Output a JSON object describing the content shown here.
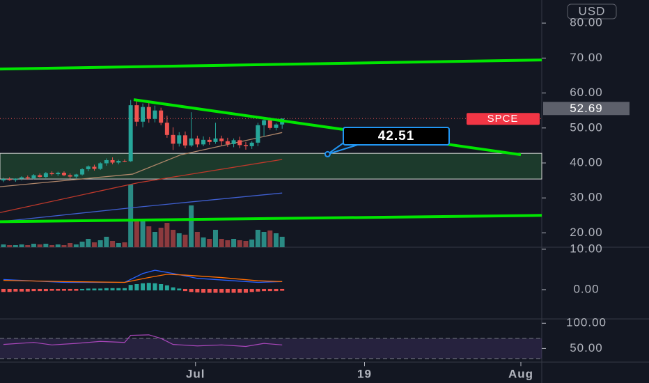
{
  "chart_data": {
    "type": "candlestick",
    "currency": "USD",
    "symbol": "SPCE",
    "xlim": [
      -0.57,
      88.85
    ],
    "xticks": [
      {
        "value": 31.7,
        "label": "Jul"
      },
      {
        "value": 59.6,
        "label": "19"
      },
      {
        "value": 85.4,
        "label": "Aug"
      }
    ],
    "ylim": [
      15.9,
      86.6
    ],
    "yticks": [
      {
        "value": 80,
        "label": "80.00"
      },
      {
        "value": 70,
        "label": "70.00"
      },
      {
        "value": 60,
        "label": "60.00"
      },
      {
        "value": 50,
        "label": "50.00"
      },
      {
        "value": 40,
        "label": "40.00"
      },
      {
        "value": 30,
        "label": "30.00"
      },
      {
        "value": 20,
        "label": "20.00"
      }
    ],
    "up_color": "#26a69a",
    "down_color": "#ef5350",
    "candles": {
      "open": [
        35.0,
        35.4,
        35.1,
        35.5,
        35.9,
        35.6,
        36.5,
        36.0,
        37.1,
        36.8,
        37.2,
        36.5,
        36.1,
        36.7,
        38.2,
        38.9,
        38.3,
        39.9,
        40.8,
        40.1,
        40.6,
        40.5,
        56.5,
        51.8,
        56.0,
        52.6,
        55.0,
        51.5,
        48.0,
        45.5,
        47.9,
        45.0,
        47.0,
        45.3,
        46.6,
        46.0,
        47.0,
        46.2,
        45.4,
        46.5,
        45.1,
        44.8,
        45.8,
        50.8,
        52.2,
        50.0,
        51.0
      ],
      "high": [
        35.8,
        35.9,
        35.6,
        36.2,
        36.4,
        36.8,
        37.0,
        37.4,
        37.6,
        37.5,
        37.6,
        37.0,
        36.9,
        38.5,
        39.3,
        39.5,
        40.2,
        41.3,
        41.6,
        40.9,
        41.0,
        58.0,
        58.2,
        57.0,
        57.2,
        56.4,
        55.8,
        53.5,
        50.2,
        48.8,
        49.0,
        54.5,
        47.8,
        47.6,
        47.4,
        51.5,
        47.8,
        47.2,
        47.0,
        47.5,
        46.0,
        46.2,
        51.5,
        52.6,
        53.0,
        51.4,
        52.2
      ],
      "low": [
        34.5,
        34.9,
        34.6,
        35.0,
        35.2,
        35.3,
        35.8,
        35.7,
        36.4,
        36.3,
        36.2,
        35.5,
        35.6,
        36.4,
        37.6,
        37.8,
        38.0,
        39.2,
        39.6,
        39.6,
        40.2,
        40.3,
        50.5,
        50.2,
        51.5,
        51.6,
        50.8,
        47.2,
        43.7,
        44.7,
        44.2,
        44.6,
        44.5,
        44.8,
        45.2,
        45.5,
        45.0,
        44.6,
        44.5,
        44.2,
        43.8,
        44.0,
        44.8,
        47.6,
        49.5,
        49.3,
        49.8
      ],
      "close": [
        35.4,
        35.1,
        35.5,
        35.9,
        35.6,
        36.5,
        36.0,
        37.1,
        36.8,
        37.2,
        36.5,
        36.1,
        36.7,
        38.2,
        39.0,
        38.3,
        39.9,
        40.8,
        40.1,
        40.6,
        40.5,
        56.5,
        51.8,
        56.0,
        52.6,
        55.0,
        51.5,
        48.0,
        45.5,
        47.9,
        45.0,
        47.0,
        45.3,
        46.6,
        46.0,
        47.0,
        46.2,
        45.4,
        46.5,
        45.1,
        44.8,
        45.8,
        50.8,
        52.2,
        50.0,
        51.0,
        52.69
      ]
    },
    "volume": {
      "ylim": [
        0,
        100
      ],
      "up_color": "#2a8a84",
      "down_color": "#8c3a3e",
      "values": [
        4,
        3,
        3,
        4,
        3,
        5,
        4,
        5,
        3,
        4,
        3,
        6,
        4,
        8,
        12,
        7,
        10,
        15,
        9,
        6,
        7,
        90,
        40,
        38,
        30,
        22,
        28,
        35,
        25,
        20,
        18,
        60,
        22,
        14,
        12,
        25,
        12,
        10,
        12,
        10,
        9,
        11,
        25,
        22,
        24,
        20,
        15
      ]
    },
    "moving_averages": [
      {
        "color": "#b0876a",
        "x": [
          -0.57,
          21.3,
          29.3,
          46
        ],
        "values": [
          33.2,
          36.8,
          42.35,
          48.7
        ]
      },
      {
        "color": "#c0392b",
        "x": [
          -0.57,
          22.4,
          46
        ],
        "values": [
          25.8,
          34.4,
          41.0
        ]
      },
      {
        "color": "#3f5fd0",
        "x": [
          -0.57,
          22.4,
          46
        ],
        "values": [
          23.2,
          27.4,
          31.4
        ]
      }
    ],
    "trendlines": [
      {
        "color": "#00e600",
        "x": [
          -0.57,
          88.85
        ],
        "values": [
          66.85,
          69.44
        ]
      },
      {
        "color": "#00e600",
        "x": [
          -0.57,
          88.85
        ],
        "values": [
          23.2,
          25.0
        ]
      },
      {
        "color": "#00e600",
        "x": [
          21.5,
          85.4
        ],
        "values": [
          58.1,
          42.35
        ]
      }
    ],
    "zone": {
      "values": [
        35.4,
        42.75
      ],
      "color": "#1c3a2c"
    },
    "annotation": {
      "x": 53.5,
      "value": 42.51
    },
    "macd": {
      "ylim": [
        -7.24,
        10.5
      ],
      "yticks": [
        {
          "value": 10,
          "label": "10.00"
        },
        {
          "value": 0,
          "label": "0.00"
        }
      ],
      "histogram": [
        -0.4,
        -0.4,
        -0.3,
        -0.3,
        -0.3,
        -0.2,
        -0.2,
        -0.2,
        -0.1,
        -0.1,
        -0.1,
        -0.1,
        -0.1,
        0.0,
        0.1,
        0.1,
        0.1,
        0.2,
        0.2,
        0.2,
        0.2,
        1.0,
        1.2,
        1.4,
        1.5,
        1.4,
        1.2,
        0.9,
        0.4,
        0.1,
        -0.2,
        -0.4,
        -0.5,
        -0.6,
        -0.6,
        -0.6,
        -0.6,
        -0.6,
        -0.6,
        -0.6,
        -0.6,
        -0.4,
        -0.3,
        -0.2,
        -0.2,
        -0.2,
        -0.1
      ],
      "lines": [
        {
          "color": "#2962ff",
          "x": [
            0,
            10,
            20,
            23,
            25,
            28,
            32,
            38,
            42,
            46
          ],
          "values": [
            2.5,
            1.8,
            1.8,
            4.0,
            4.8,
            4.0,
            2.8,
            2.2,
            1.8,
            2.0
          ]
        },
        {
          "color": "#ff6d00",
          "x": [
            0,
            10,
            20,
            24,
            27,
            30,
            36,
            42,
            46
          ],
          "values": [
            2.3,
            2.0,
            1.8,
            3.0,
            3.8,
            3.6,
            3.0,
            2.2,
            2.0
          ]
        }
      ]
    },
    "rsi": {
      "ylim": [
        22.9,
        108.6
      ],
      "yticks": [
        {
          "value": 100,
          "label": "100.00"
        },
        {
          "value": 50,
          "label": "50.00"
        }
      ],
      "levels": [
        70,
        30
      ],
      "color": "#ab47bc",
      "line": {
        "x": [
          0,
          5,
          8,
          12,
          16,
          20,
          21,
          24,
          26,
          28,
          32,
          36,
          40,
          43,
          46
        ],
        "values": [
          58,
          62,
          57,
          60,
          64,
          62,
          76,
          77,
          70,
          58,
          55,
          57,
          54,
          60,
          57
        ]
      }
    }
  }
}
